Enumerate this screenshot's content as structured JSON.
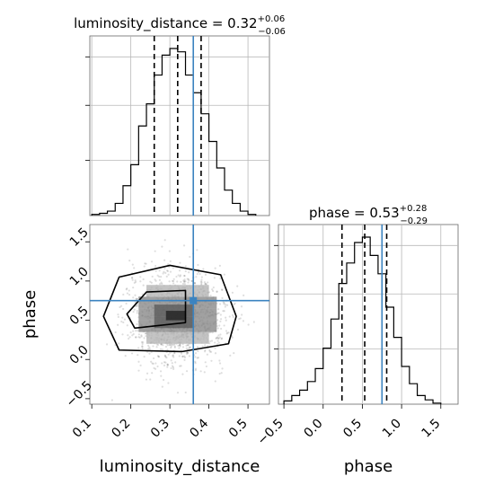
{
  "chart_data": {
    "type": "corner",
    "params": [
      "luminosity_distance",
      "phase"
    ],
    "axis_labels": {
      "x_left": "luminosity_distance",
      "x_right": "phase",
      "y_left": "phase"
    },
    "titles": [
      {
        "param": "luminosity_distance",
        "text": "luminosity_distance = 0.32",
        "median": 0.32,
        "plus": "+0.06",
        "minus": "−0.06"
      },
      {
        "param": "phase",
        "text": "phase = 0.53",
        "median": 0.53,
        "plus": "+0.28",
        "minus": "−0.29"
      }
    ],
    "truths": {
      "luminosity_distance": 0.36,
      "phase": 0.75
    },
    "quantiles": {
      "luminosity_distance": [
        0.26,
        0.32,
        0.38
      ],
      "phase": [
        0.24,
        0.53,
        0.81
      ]
    },
    "ticks": {
      "luminosity_distance": [
        "0.1",
        "0.2",
        "0.3",
        "0.4",
        "0.5"
      ],
      "phase_y": [
        "−0.5",
        "0.0",
        "0.5",
        "1.0",
        "1.5"
      ],
      "phase_x": [
        "−0.5",
        "0.0",
        "0.5",
        "1.0",
        "1.5"
      ]
    },
    "ranges": {
      "luminosity_distance": [
        0.095,
        0.555
      ],
      "phase": [
        -0.57,
        1.72
      ]
    },
    "hist_luminosity_distance": {
      "edges": [
        0.1,
        0.12,
        0.14,
        0.16,
        0.18,
        0.2,
        0.22,
        0.24,
        0.26,
        0.28,
        0.3,
        0.32,
        0.34,
        0.36,
        0.38,
        0.4,
        0.42,
        0.44,
        0.46,
        0.48,
        0.5,
        0.52
      ],
      "counts": [
        1,
        2,
        4,
        11,
        27,
        46,
        81,
        101,
        127,
        145,
        151,
        148,
        127,
        111,
        92,
        67,
        43,
        23,
        11,
        4,
        1
      ]
    },
    "hist_phase": {
      "edges": [
        -0.5,
        -0.4,
        -0.3,
        -0.2,
        -0.1,
        0.0,
        0.1,
        0.2,
        0.3,
        0.4,
        0.5,
        0.6,
        0.7,
        0.8,
        0.9,
        1.0,
        1.1,
        1.2,
        1.3,
        1.4,
        1.5
      ],
      "counts": [
        3,
        8,
        13,
        21,
        33,
        52,
        79,
        112,
        131,
        150,
        155,
        138,
        121,
        90,
        62,
        35,
        19,
        8,
        4,
        1
      ]
    },
    "contour_levels": [
      [
        [
          0.21,
          0.4
        ],
        [
          0.34,
          0.47
        ],
        [
          0.34,
          0.88
        ],
        [
          0.24,
          0.86
        ],
        [
          0.19,
          0.58
        ]
      ],
      [
        [
          0.17,
          0.12
        ],
        [
          0.33,
          0.1
        ],
        [
          0.45,
          0.2
        ],
        [
          0.47,
          0.55
        ],
        [
          0.43,
          1.08
        ],
        [
          0.3,
          1.2
        ],
        [
          0.17,
          1.05
        ],
        [
          0.13,
          0.55
        ]
      ]
    ],
    "grid": true
  }
}
